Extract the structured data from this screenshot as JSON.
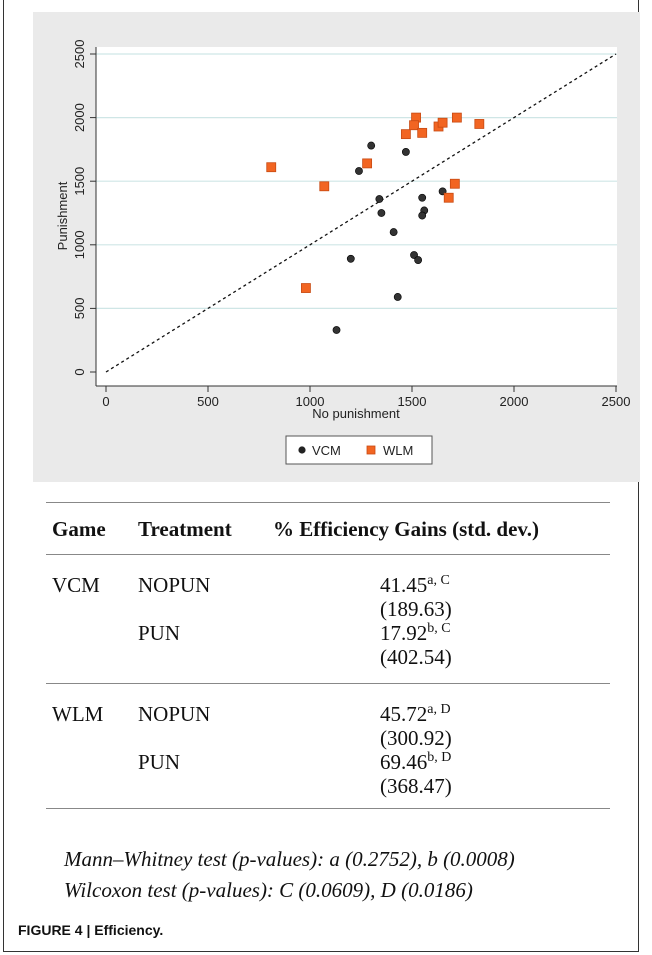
{
  "chart_data": {
    "type": "scatter",
    "xlabel": "No punishment",
    "ylabel": "Punishment",
    "xlim": [
      0,
      2500
    ],
    "ylim": [
      0,
      2500
    ],
    "xticks": [
      "0",
      "500",
      "1000",
      "1500",
      "2000",
      "2500"
    ],
    "yticks": [
      "0",
      "500",
      "1000",
      "1500",
      "2000",
      "2500"
    ],
    "grid": true,
    "legend_position": "bottom",
    "reference_line": "y = x (dashed)",
    "series": [
      {
        "name": "VCM",
        "marker": "circle",
        "color": "#333333",
        "points": [
          [
            1300,
            1780
          ],
          [
            1240,
            1580
          ],
          [
            1470,
            1730
          ],
          [
            1340,
            1360
          ],
          [
            1350,
            1250
          ],
          [
            1550,
            1370
          ],
          [
            1560,
            1270
          ],
          [
            1550,
            1230
          ],
          [
            1650,
            1420
          ],
          [
            1410,
            1100
          ],
          [
            1200,
            890
          ],
          [
            1510,
            920
          ],
          [
            1530,
            880
          ],
          [
            1430,
            590
          ],
          [
            1130,
            330
          ]
        ]
      },
      {
        "name": "WLM",
        "marker": "square",
        "color": "#f26522",
        "points": [
          [
            810,
            1610
          ],
          [
            1070,
            1460
          ],
          [
            980,
            660
          ],
          [
            1280,
            1640
          ],
          [
            1470,
            1870
          ],
          [
            1520,
            2000
          ],
          [
            1510,
            1940
          ],
          [
            1550,
            1880
          ],
          [
            1630,
            1930
          ],
          [
            1650,
            1960
          ],
          [
            1720,
            2000
          ],
          [
            1830,
            1950
          ],
          [
            1710,
            1480
          ],
          [
            1680,
            1370
          ]
        ]
      }
    ]
  },
  "table": {
    "headers": [
      "Game",
      "Treatment",
      "% Efficiency Gains (std. dev.)"
    ],
    "rows": [
      {
        "game": "VCM",
        "treatment": "NOPUN",
        "value": "41.45",
        "sup": "a, C",
        "sd": "(189.63)"
      },
      {
        "game": "",
        "treatment": "PUN",
        "value": "17.92",
        "sup": "b, C",
        "sd": "(402.54)"
      },
      {
        "game": "WLM",
        "treatment": "NOPUN",
        "value": "45.72",
        "sup": "a, D",
        "sd": "(300.92)"
      },
      {
        "game": "",
        "treatment": "PUN",
        "value": "69.46",
        "sup": "b, D",
        "sd": "(368.47)"
      }
    ]
  },
  "notes": {
    "mann_whitney": "Mann–Whitney test (p-values): a (0.2752), b (0.0008)",
    "wilcoxon": "Wilcoxon test (p-values): C (0.0609), D (0.0186)"
  },
  "caption": {
    "label": "FIGURE 4 | Efficiency."
  }
}
